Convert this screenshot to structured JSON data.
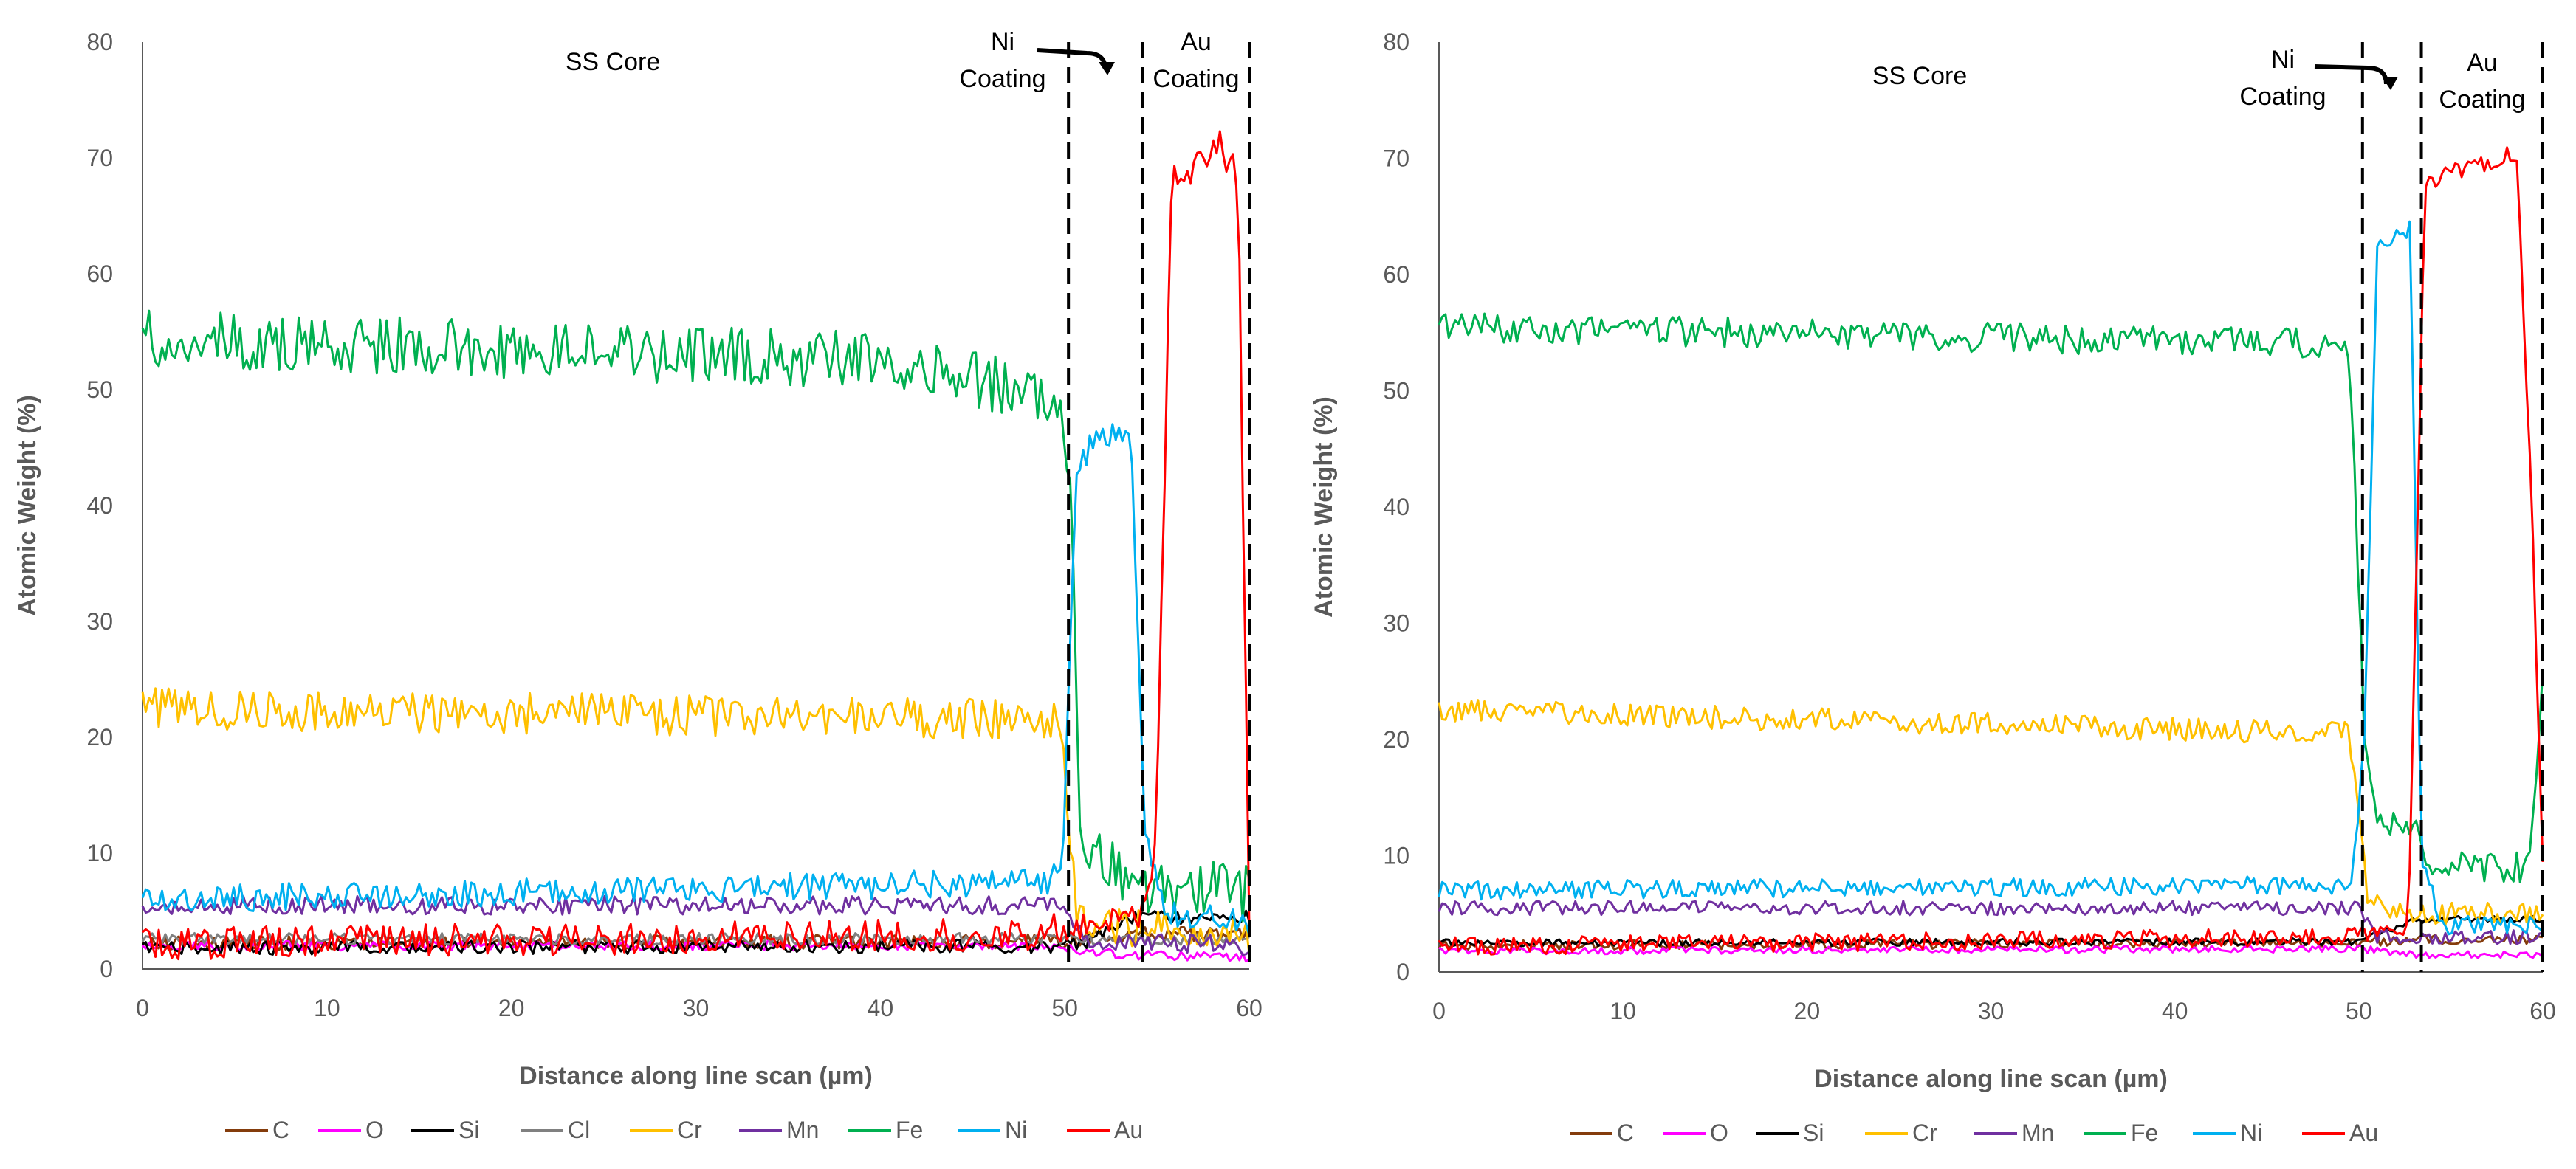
{
  "chart_data": [
    {
      "type": "line",
      "xlabel": "Distance along line scan (µm)",
      "ylabel": "Atomic Weight (%)",
      "xlim": [
        0,
        60
      ],
      "ylim": [
        0,
        80
      ],
      "xticks": [
        "0",
        "10",
        "20",
        "30",
        "40",
        "50",
        "60"
      ],
      "yticks": [
        "0",
        "10",
        "20",
        "30",
        "40",
        "50",
        "60",
        "70",
        "80"
      ],
      "grid": false,
      "legend_position": "bottom",
      "annotations": [
        {
          "text": "SS Core"
        },
        {
          "text": "Ni\nCoating"
        },
        {
          "text": "Au\nCoating"
        }
      ],
      "boundaries": [
        50.2,
        54.2,
        60.0
      ],
      "series": [
        {
          "name": "C",
          "color": "#843C0C",
          "profile": [
            [
              0,
              2.2
            ],
            [
              50,
              2.4
            ],
            [
              51,
              2.6
            ],
            [
              54,
              3.0
            ],
            [
              60,
              3.0
            ]
          ],
          "noise": 0.6
        },
        {
          "name": "O",
          "color": "#FF00FF",
          "profile": [
            [
              0,
              2.0
            ],
            [
              50,
              2.0
            ],
            [
              51,
              1.5
            ],
            [
              54,
              1.2
            ],
            [
              60,
              1.0
            ]
          ],
          "noise": 0.4
        },
        {
          "name": "Si",
          "color": "#000000",
          "profile": [
            [
              0,
              1.8
            ],
            [
              50,
              2.0
            ],
            [
              51,
              2.2
            ],
            [
              54,
              4.5
            ],
            [
              60,
              4.5
            ]
          ],
          "noise": 0.6
        },
        {
          "name": "Cl",
          "color": "#808080",
          "profile": [
            [
              0,
              2.6
            ],
            [
              50,
              2.6
            ],
            [
              51,
              2.5
            ],
            [
              60,
              2.5
            ]
          ],
          "noise": 0.5
        },
        {
          "name": "Cr",
          "color": "#FFC000",
          "profile": [
            [
              0,
              22.5
            ],
            [
              49.8,
              21.5
            ],
            [
              50.6,
              5.0
            ],
            [
              51.5,
              3.5
            ],
            [
              54,
              3.5
            ],
            [
              60,
              3.0
            ]
          ],
          "noise": 1.8
        },
        {
          "name": "Mn",
          "color": "#7030A0",
          "profile": [
            [
              0,
              5.5
            ],
            [
              50,
              5.5
            ],
            [
              51,
              2.5
            ],
            [
              60,
              2.0
            ]
          ],
          "noise": 0.8
        },
        {
          "name": "Fe",
          "color": "#00B050",
          "profile": [
            [
              0,
              54.5
            ],
            [
              40,
              52.5
            ],
            [
              49.5,
              49.5
            ],
            [
              50.3,
              42.0
            ],
            [
              50.9,
              10.0
            ],
            [
              54,
              7.5
            ],
            [
              60,
              6.5
            ]
          ],
          "noise": 2.5
        },
        {
          "name": "Ni",
          "color": "#00B0F0",
          "profile": [
            [
              0,
              6.0
            ],
            [
              49,
              7.5
            ],
            [
              49.9,
              10.0
            ],
            [
              50.6,
              42.0
            ],
            [
              51.5,
              46.0
            ],
            [
              53.6,
              46.0
            ],
            [
              54.3,
              12.0
            ],
            [
              55.5,
              5.0
            ],
            [
              60,
              4.0
            ]
          ],
          "noise": 1.2
        },
        {
          "name": "Au",
          "color": "#FF0000",
          "profile": [
            [
              0,
              2.2
            ],
            [
              48,
              3.0
            ],
            [
              50,
              3.5
            ],
            [
              54,
              4.5
            ],
            [
              54.9,
              10.0
            ],
            [
              55.8,
              68.0
            ],
            [
              58.5,
              71.0
            ],
            [
              59.4,
              68.0
            ],
            [
              60,
              5.0
            ]
          ],
          "noise": 1.4
        }
      ]
    },
    {
      "type": "line",
      "xlabel": "Distance along line scan (µm)",
      "ylabel": "Atomic Weight (%)",
      "xlim": [
        0,
        60
      ],
      "ylim": [
        0,
        80
      ],
      "xticks": [
        "0",
        "10",
        "20",
        "30",
        "40",
        "50",
        "60"
      ],
      "yticks": [
        "0",
        "10",
        "20",
        "30",
        "40",
        "50",
        "60",
        "70",
        "80"
      ],
      "grid": false,
      "legend_position": "bottom",
      "annotations": [
        {
          "text": "SS Core"
        },
        {
          "text": "Ni\nCoating"
        },
        {
          "text": "Au\nCoating"
        }
      ],
      "boundaries": [
        50.2,
        53.4,
        60.0
      ],
      "series": [
        {
          "name": "C",
          "color": "#843C0C",
          "profile": [
            [
              0,
              2.3
            ],
            [
              50,
              2.5
            ],
            [
              53,
              2.8
            ],
            [
              60,
              2.8
            ]
          ],
          "noise": 0.4
        },
        {
          "name": "O",
          "color": "#FF00FF",
          "profile": [
            [
              0,
              1.8
            ],
            [
              50,
              2.0
            ],
            [
              53,
              1.5
            ],
            [
              60,
              1.5
            ]
          ],
          "noise": 0.3
        },
        {
          "name": "Si",
          "color": "#000000",
          "profile": [
            [
              0,
              2.5
            ],
            [
              50,
              2.6
            ],
            [
              53,
              4.5
            ],
            [
              60,
              4.5
            ]
          ],
          "noise": 0.3
        },
        {
          "name": "Cr",
          "color": "#FFC000",
          "profile": [
            [
              0,
              22.5
            ],
            [
              49.5,
              20.5
            ],
            [
              50.5,
              6.0
            ],
            [
              53,
              5.0
            ],
            [
              60,
              5.0
            ]
          ],
          "noise": 1.0
        },
        {
          "name": "Mn",
          "color": "#7030A0",
          "profile": [
            [
              0,
              5.5
            ],
            [
              50,
              5.5
            ],
            [
              51,
              3.0
            ],
            [
              60,
              3.0
            ]
          ],
          "noise": 0.6
        },
        {
          "name": "Fe",
          "color": "#00B050",
          "profile": [
            [
              0,
              55.5
            ],
            [
              49.5,
              54.0
            ],
            [
              50.3,
              20.0
            ],
            [
              50.9,
              13.0
            ],
            [
              53.2,
              12.0
            ],
            [
              53.9,
              9.0
            ],
            [
              59.2,
              9.0
            ],
            [
              60,
              25.0
            ]
          ],
          "noise": 1.3
        },
        {
          "name": "Ni",
          "color": "#00B0F0",
          "profile": [
            [
              0,
              7.0
            ],
            [
              49.6,
              7.5
            ],
            [
              50.3,
              20.0
            ],
            [
              51.0,
              62.0
            ],
            [
              52.8,
              64.0
            ],
            [
              53.4,
              10.0
            ],
            [
              54.5,
              4.0
            ],
            [
              60,
              4.0
            ]
          ],
          "noise": 0.8
        },
        {
          "name": "Au",
          "color": "#FF0000",
          "profile": [
            [
              0,
              2.2
            ],
            [
              50,
              3.0
            ],
            [
              52.7,
              4.0
            ],
            [
              53.6,
              68.0
            ],
            [
              58.6,
              70.5
            ],
            [
              59.4,
              40.0
            ],
            [
              60,
              10.0
            ]
          ],
          "noise": 0.8
        }
      ]
    }
  ]
}
